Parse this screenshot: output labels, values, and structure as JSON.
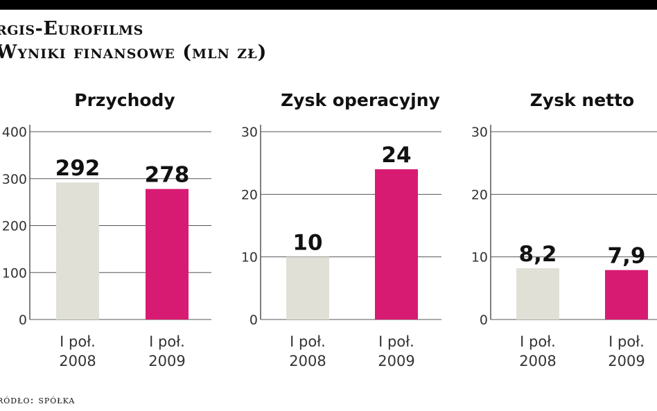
{
  "header": {
    "title": "rgis-Eurofilms",
    "subtitle": "Wyniki finansowe (mln zł)"
  },
  "source": "ródło: spółka",
  "colors": {
    "bar_2008": "#e1e0d7",
    "bar_2009": "#d81b72",
    "grid": "#555555",
    "text": "#111111"
  },
  "chart_data": [
    {
      "type": "bar",
      "title": "Przychody",
      "categories": [
        "I poł. 2008",
        "I poł. 2009"
      ],
      "values": [
        292,
        278
      ],
      "value_labels": [
        "292",
        "278"
      ],
      "ylim": [
        0,
        400
      ],
      "yticks": [
        0,
        100,
        200,
        300,
        400
      ],
      "xlabel": "",
      "ylabel": "",
      "grid": true
    },
    {
      "type": "bar",
      "title": "Zysk operacyjny",
      "categories": [
        "I poł. 2008",
        "I poł. 2009"
      ],
      "values": [
        10,
        24
      ],
      "value_labels": [
        "10",
        "24"
      ],
      "ylim": [
        0,
        30
      ],
      "yticks": [
        0,
        10,
        20,
        30
      ],
      "xlabel": "",
      "ylabel": "",
      "grid": true
    },
    {
      "type": "bar",
      "title": "Zysk netto",
      "categories": [
        "I poł. 2008",
        "I poł. 2009"
      ],
      "values": [
        8.2,
        7.9
      ],
      "value_labels": [
        "8,2",
        "7,9"
      ],
      "ylim": [
        0,
        30
      ],
      "yticks": [
        0,
        10,
        20,
        30
      ],
      "xlabel": "",
      "ylabel": "",
      "grid": true
    }
  ]
}
